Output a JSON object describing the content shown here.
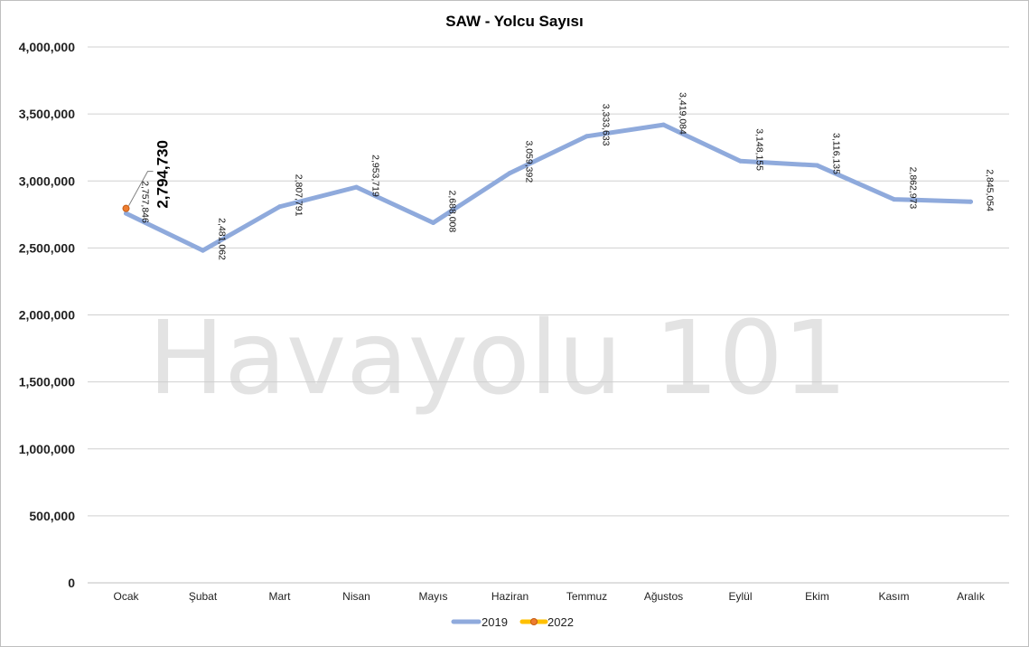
{
  "watermark": "Havayolu 101",
  "chart_data": {
    "type": "line",
    "title": "SAW - Yolcu Sayısı",
    "xlabel": "",
    "ylabel": "",
    "categories": [
      "Ocak",
      "Şubat",
      "Mart",
      "Nisan",
      "Mayıs",
      "Haziran",
      "Temmuz",
      "Ağustos",
      "Eylül",
      "Ekim",
      "Kasım",
      "Aralık"
    ],
    "ylim": [
      0,
      4000000
    ],
    "yticks": [
      0,
      500000,
      1000000,
      1500000,
      2000000,
      2500000,
      3000000,
      3500000,
      4000000
    ],
    "ytick_labels": [
      "0",
      "500,000",
      "1,000,000",
      "1,500,000",
      "2,000,000",
      "2,500,000",
      "3,000,000",
      "3,500,000",
      "4,000,000"
    ],
    "grid": true,
    "legend_position": "bottom",
    "series": [
      {
        "name": "2019",
        "color": "#8faadc",
        "values": [
          2757846,
          2481062,
          2807791,
          2953719,
          2688008,
          3059392,
          3333633,
          3419084,
          3148155,
          3116135,
          2862973,
          2845054
        ],
        "data_labels": [
          "2,757,846",
          "2,481,062",
          "2,807,791",
          "2,953,719",
          "2,688,008",
          "3,059,392",
          "3,333,633",
          "3,419,084",
          "3,148,155",
          "3,116,135",
          "2,862,973",
          "2,845,054"
        ]
      },
      {
        "name": "2022",
        "color": "#ffc000",
        "marker_color": "#ed7d31",
        "values": [
          2794730,
          null,
          null,
          null,
          null,
          null,
          null,
          null,
          null,
          null,
          null,
          null
        ],
        "data_labels": [
          "2,794,730"
        ]
      }
    ]
  }
}
